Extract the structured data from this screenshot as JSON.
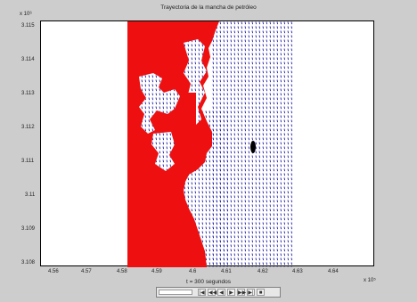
{
  "window": {
    "title": "Trayectoria de la mancha de petróleo",
    "caption": "t = 300 segundos"
  },
  "axes": {
    "y_exponent": "x 10⁶",
    "x_exponent": "x 10⁵",
    "x_ticks": [
      "4.56",
      "4.57",
      "4.58",
      "4.59",
      "4.6",
      "4.61",
      "4.62",
      "4.63",
      "4.64"
    ],
    "y_ticks": [
      "3.115",
      "3.114",
      "3.113",
      "3.112",
      "3.111",
      "3.11",
      "3.109",
      "3.108"
    ]
  },
  "colors": {
    "land": "#ee1010",
    "vectors": "#1a1aa8",
    "spill": "#000000"
  },
  "controls": {
    "buttons": [
      "|◀",
      "◀◀",
      "◀",
      "▶",
      "▶▶",
      "▶|",
      "■"
    ]
  }
}
